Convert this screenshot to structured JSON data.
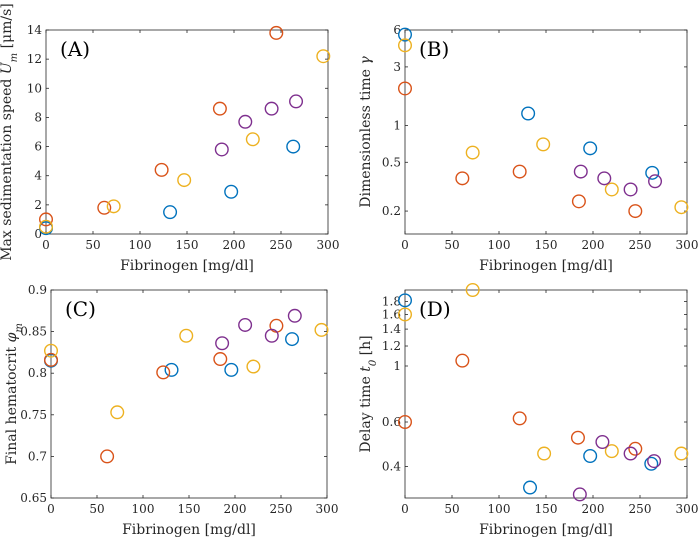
{
  "colors": {
    "blue": "#0072BD",
    "red": "#D95319",
    "yellow": "#EDB120",
    "purple": "#7E2F8E"
  },
  "chart_data": [
    {
      "id": "A",
      "type": "scatter",
      "panel_label": "(A)",
      "xlabel": "Fibrinogen [mg/dl]",
      "ylabel": "Max sedimentation speed U_m [μm/s]",
      "xlim": [
        0,
        300
      ],
      "ylim": [
        0,
        14
      ],
      "yscale": "linear",
      "x_ticks": [
        0,
        50,
        100,
        150,
        200,
        250,
        300
      ],
      "x_tick_labels": [
        "0",
        "50",
        "100",
        "150",
        "200",
        "250",
        "300"
      ],
      "y_ticks": [
        0,
        2,
        4,
        6,
        8,
        10,
        12,
        14
      ],
      "y_tick_labels": [
        "0",
        "2",
        "4",
        "6",
        "8",
        "10",
        "12",
        "14"
      ],
      "series": [
        {
          "name": "blue",
          "color": "#0072BD",
          "points": [
            [
              0,
              0.4
            ],
            [
              132,
              1.5
            ],
            [
              197,
              2.9
            ],
            [
              263,
              6.0
            ]
          ]
        },
        {
          "name": "red",
          "color": "#D95319",
          "points": [
            [
              0,
              1.0
            ],
            [
              62,
              1.8
            ],
            [
              123,
              4.4
            ],
            [
              185,
              8.6
            ],
            [
              245,
              13.8
            ]
          ]
        },
        {
          "name": "yellow",
          "color": "#EDB120",
          "points": [
            [
              0,
              0.5
            ],
            [
              72,
              1.9
            ],
            [
              147,
              3.7
            ],
            [
              220,
              6.5
            ],
            [
              295,
              12.2
            ]
          ]
        },
        {
          "name": "purple",
          "color": "#7E2F8E",
          "points": [
            [
              187,
              5.8
            ],
            [
              212,
              7.7
            ],
            [
              240,
              8.6
            ],
            [
              266,
              9.1
            ]
          ]
        }
      ]
    },
    {
      "id": "B",
      "type": "scatter",
      "panel_label": "(B)",
      "xlabel": "Fibrinogen [mg/dl]",
      "ylabel": "Dimensionless time γ",
      "xlim": [
        0,
        300
      ],
      "ylim": [
        0.13,
        6
      ],
      "yscale": "log",
      "x_ticks": [
        0,
        50,
        100,
        150,
        200,
        250,
        300
      ],
      "x_tick_labels": [
        "0",
        "50",
        "100",
        "150",
        "200",
        "250",
        "300"
      ],
      "y_ticks": [
        0.2,
        0.5,
        1,
        3,
        6
      ],
      "y_tick_labels": [
        "0.2",
        "0.5",
        "1",
        "3",
        "6"
      ],
      "series": [
        {
          "name": "blue",
          "color": "#0072BD",
          "points": [
            [
              0,
              5.5
            ],
            [
              131,
              1.25
            ],
            [
              197,
              0.65
            ],
            [
              263,
              0.41
            ]
          ]
        },
        {
          "name": "red",
          "color": "#D95319",
          "points": [
            [
              0,
              2.0
            ],
            [
              61,
              0.37
            ],
            [
              122,
              0.42
            ],
            [
              185,
              0.24
            ],
            [
              245,
              0.2
            ]
          ]
        },
        {
          "name": "yellow",
          "color": "#EDB120",
          "points": [
            [
              0,
              4.5
            ],
            [
              72,
              0.6
            ],
            [
              147,
              0.7
            ],
            [
              220,
              0.3
            ],
            [
              294,
              0.215
            ]
          ]
        },
        {
          "name": "purple",
          "color": "#7E2F8E",
          "points": [
            [
              187,
              0.42
            ],
            [
              212,
              0.37
            ],
            [
              240,
              0.3
            ],
            [
              266,
              0.35
            ]
          ]
        }
      ]
    },
    {
      "id": "C",
      "type": "scatter",
      "panel_label": "(C)",
      "xlabel": "Fibrinogen [mg/dl]",
      "ylabel": "Final hematocrit φ_m",
      "xlim": [
        0,
        300
      ],
      "ylim": [
        0.65,
        0.9
      ],
      "yscale": "linear",
      "x_ticks": [
        0,
        50,
        100,
        150,
        200,
        250,
        300
      ],
      "x_tick_labels": [
        "0",
        "50",
        "100",
        "150",
        "200",
        "250",
        "300"
      ],
      "y_ticks": [
        0.65,
        0.7,
        0.75,
        0.8,
        0.85,
        0.9
      ],
      "y_tick_labels": [
        "0.65",
        "0.7",
        "0.75",
        "0.8",
        "0.85",
        "0.9"
      ],
      "series": [
        {
          "name": "blue",
          "color": "#0072BD",
          "points": [
            [
              0,
              0.815
            ],
            [
              131,
              0.804
            ],
            [
              196,
              0.804
            ],
            [
              262,
              0.841
            ]
          ]
        },
        {
          "name": "red",
          "color": "#D95319",
          "points": [
            [
              0,
              0.816
            ],
            [
              61,
              0.7
            ],
            [
              122,
              0.801
            ],
            [
              184,
              0.817
            ],
            [
              245,
              0.857
            ]
          ]
        },
        {
          "name": "yellow",
          "color": "#EDB120",
          "points": [
            [
              0,
              0.827
            ],
            [
              72,
              0.753
            ],
            [
              147,
              0.845
            ],
            [
              220,
              0.808
            ],
            [
              294,
              0.852
            ]
          ]
        },
        {
          "name": "purple",
          "color": "#7E2F8E",
          "points": [
            [
              186,
              0.836
            ],
            [
              211,
              0.858
            ],
            [
              240,
              0.845
            ],
            [
              265,
              0.869
            ]
          ]
        }
      ]
    },
    {
      "id": "D",
      "type": "scatter",
      "panel_label": "(D)",
      "xlabel": "Fibrinogen [mg/dl]",
      "ylabel": "Delay time t_0 [h]",
      "xlim": [
        0,
        300
      ],
      "ylim": [
        0.3,
        2.0
      ],
      "yscale": "log",
      "x_ticks": [
        0,
        50,
        100,
        150,
        200,
        250,
        300
      ],
      "x_tick_labels": [
        "0",
        "50",
        "100",
        "150",
        "200",
        "250",
        "300"
      ],
      "y_ticks": [
        0.4,
        0.6,
        1,
        1.2,
        1.4,
        1.6,
        1.8
      ],
      "y_tick_labels": [
        "0.4",
        "0.6",
        "1",
        "1.2",
        "1.4",
        "1.6",
        "1.8"
      ],
      "series": [
        {
          "name": "blue",
          "color": "#0072BD",
          "points": [
            [
              0,
              1.82
            ],
            [
              133,
              0.33
            ],
            [
              197,
              0.44
            ],
            [
              262,
              0.41
            ]
          ]
        },
        {
          "name": "red",
          "color": "#D95319",
          "points": [
            [
              0,
              0.6
            ],
            [
              61,
              1.05
            ],
            [
              122,
              0.62
            ],
            [
              184,
              0.52
            ],
            [
              245,
              0.47
            ]
          ]
        },
        {
          "name": "yellow",
          "color": "#EDB120",
          "points": [
            [
              0,
              1.6
            ],
            [
              72,
              2.0
            ],
            [
              148,
              0.45
            ],
            [
              220,
              0.46
            ],
            [
              294,
              0.45
            ]
          ]
        },
        {
          "name": "purple",
          "color": "#7E2F8E",
          "points": [
            [
              186,
              0.31
            ],
            [
              210,
              0.5
            ],
            [
              240,
              0.45
            ],
            [
              265,
              0.42
            ]
          ]
        }
      ]
    }
  ]
}
